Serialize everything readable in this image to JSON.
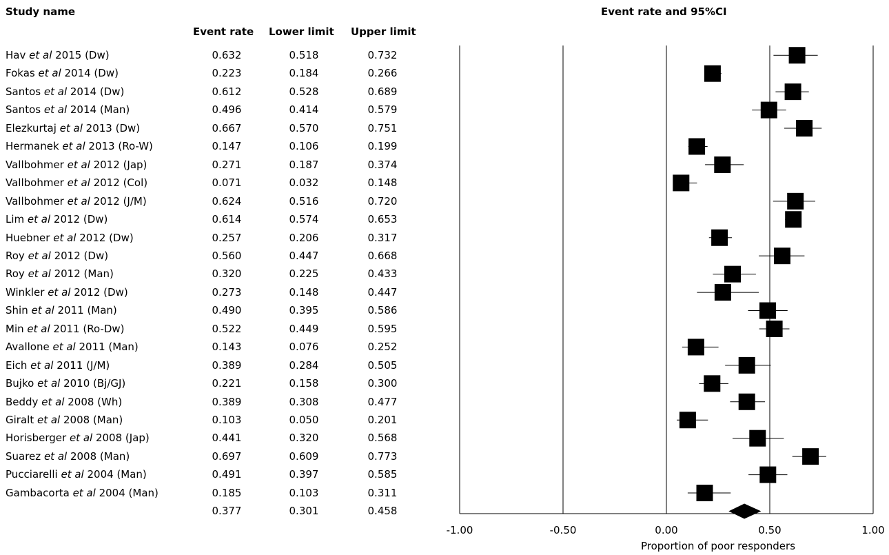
{
  "headers": {
    "study_name": "Study name",
    "event_rate": "Event rate",
    "lower_limit": "Lower limit",
    "upper_limit": "Upper limit",
    "plot_title": "Event rate and 95%CI"
  },
  "chart_data": {
    "type": "forest",
    "title": "Event rate and 95%CI",
    "xlabel": "Proportion of poor responders",
    "xlim": [
      -1.0,
      1.0
    ],
    "xticks": [
      "-1.00",
      "-0.50",
      "0.00",
      "0.50",
      "1.00"
    ],
    "xtick_values": [
      -1.0,
      -0.5,
      0.0,
      0.5,
      1.0
    ],
    "reference_line": 0.5,
    "studies": [
      {
        "author": "Hav",
        "etal": "et al",
        "rest": "2015 (Dw)",
        "rate": "0.632",
        "lower": "0.518",
        "upper": "0.732"
      },
      {
        "author": "Fokas",
        "etal": "et al",
        "rest": "2014 (Dw)",
        "rate": "0.223",
        "lower": "0.184",
        "upper": "0.266"
      },
      {
        "author": "Santos",
        "etal": "et al",
        "rest": "2014 (Dw)",
        "rate": "0.612",
        "lower": "0.528",
        "upper": "0.689"
      },
      {
        "author": "Santos",
        "etal": "et al",
        "rest": "2014 (Man)",
        "rate": "0.496",
        "lower": "0.414",
        "upper": "0.579"
      },
      {
        "author": "Elezkurtaj",
        "etal": "et al",
        "rest": "2013 (Dw)",
        "rate": "0.667",
        "lower": "0.570",
        "upper": "0.751"
      },
      {
        "author": "Hermanek",
        "etal": "et al",
        "rest": "2013 (Ro-W)",
        "rate": "0.147",
        "lower": "0.106",
        "upper": "0.199"
      },
      {
        "author": "Vallbohmer",
        "etal": "et al",
        "rest": "2012 (Jap)",
        "rate": "0.271",
        "lower": "0.187",
        "upper": "0.374"
      },
      {
        "author": "Vallbohmer",
        "etal": "et al",
        "rest": "2012 (Col)",
        "rate": "0.071",
        "lower": "0.032",
        "upper": "0.148"
      },
      {
        "author": "Vallbohmer",
        "etal": "et al",
        "rest": "2012 (J/M)",
        "rate": "0.624",
        "lower": "0.516",
        "upper": "0.720"
      },
      {
        "author": "Lim",
        "etal": "et al",
        "rest": "2012 (Dw)",
        "rate": "0.614",
        "lower": "0.574",
        "upper": "0.653"
      },
      {
        "author": "Huebner",
        "etal": "et al",
        "rest": "2012 (Dw)",
        "rate": "0.257",
        "lower": "0.206",
        "upper": "0.317"
      },
      {
        "author": "Roy",
        "etal": "et al",
        "rest": "2012 (Dw)",
        "rate": "0.560",
        "lower": "0.447",
        "upper": "0.668"
      },
      {
        "author": "Roy",
        "etal": "et al",
        "rest": "2012 (Man)",
        "rate": "0.320",
        "lower": "0.225",
        "upper": "0.433"
      },
      {
        "author": "Winkler",
        "etal": "et al",
        "rest": "2012 (Dw)",
        "rate": "0.273",
        "lower": "0.148",
        "upper": "0.447"
      },
      {
        "author": "Shin",
        "etal": "et al",
        "rest": "2011 (Man)",
        "rate": "0.490",
        "lower": "0.395",
        "upper": "0.586"
      },
      {
        "author": "Min",
        "etal": "et al",
        "rest": "2011 (Ro-Dw)",
        "rate": "0.522",
        "lower": "0.449",
        "upper": "0.595"
      },
      {
        "author": "Avallone",
        "etal": "et al",
        "rest": "2011 (Man)",
        "rate": "0.143",
        "lower": "0.076",
        "upper": "0.252"
      },
      {
        "author": "Eich",
        "etal": "et al",
        "rest": "2011 (J/M)",
        "rate": "0.389",
        "lower": "0.284",
        "upper": "0.505"
      },
      {
        "author": "Bujko",
        "etal": "et al",
        "rest": "2010 (Bj/GJ)",
        "rate": "0.221",
        "lower": "0.158",
        "upper": "0.300"
      },
      {
        "author": "Beddy",
        "etal": "et al",
        "rest": "2008 (Wh)",
        "rate": "0.389",
        "lower": "0.308",
        "upper": "0.477"
      },
      {
        "author": "Giralt",
        "etal": "et al",
        "rest": "2008 (Man)",
        "rate": "0.103",
        "lower": "0.050",
        "upper": "0.201"
      },
      {
        "author": "Horisberger",
        "etal": "et al",
        "rest": "2008 (Jap)",
        "rate": "0.441",
        "lower": "0.320",
        "upper": "0.568"
      },
      {
        "author": "Suarez",
        "etal": "et al",
        "rest": "2008 (Man)",
        "rate": "0.697",
        "lower": "0.609",
        "upper": "0.773"
      },
      {
        "author": "Pucciarelli",
        "etal": "et al",
        "rest": "2004 (Man)",
        "rate": "0.491",
        "lower": "0.397",
        "upper": "0.585"
      },
      {
        "author": "Gambacorta",
        "etal": "et al",
        "rest": "2004 (Man)",
        "rate": "0.185",
        "lower": "0.103",
        "upper": "0.311"
      }
    ],
    "summary": {
      "rate": "0.377",
      "lower": "0.301",
      "upper": "0.458"
    }
  }
}
